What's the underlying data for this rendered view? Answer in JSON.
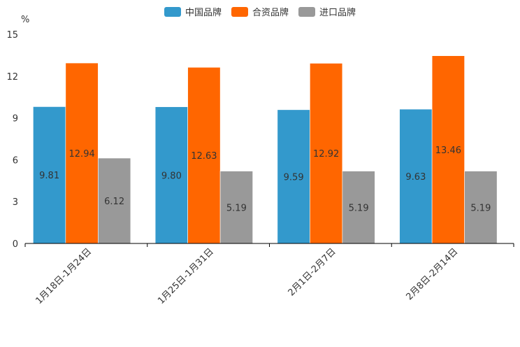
{
  "chart_data": {
    "type": "bar",
    "unit": "%",
    "categories": [
      "1月18日-1月24日",
      "1月25日-1月31日",
      "2月1日-2月7日",
      "2月8日-2月14日"
    ],
    "series": [
      {
        "name": "中国品牌",
        "color": "#3399cc",
        "values": [
          9.81,
          9.8,
          9.59,
          9.63
        ],
        "labels": [
          "9.81",
          "9.80",
          "9.59",
          "9.63"
        ]
      },
      {
        "name": "合资品牌",
        "color": "#ff6600",
        "values": [
          12.94,
          12.63,
          12.92,
          13.46
        ],
        "labels": [
          "12.94",
          "12.63",
          "12.92",
          "13.46"
        ]
      },
      {
        "name": "进口品牌",
        "color": "#999999",
        "values": [
          6.12,
          5.19,
          5.19,
          5.19
        ],
        "labels": [
          "6.12",
          "5.19",
          "5.19",
          "5.19"
        ]
      }
    ],
    "ylim": [
      0,
      15
    ],
    "yticks": [
      "0",
      "3",
      "6",
      "9",
      "12",
      "15"
    ],
    "legend_position": "top-center"
  }
}
